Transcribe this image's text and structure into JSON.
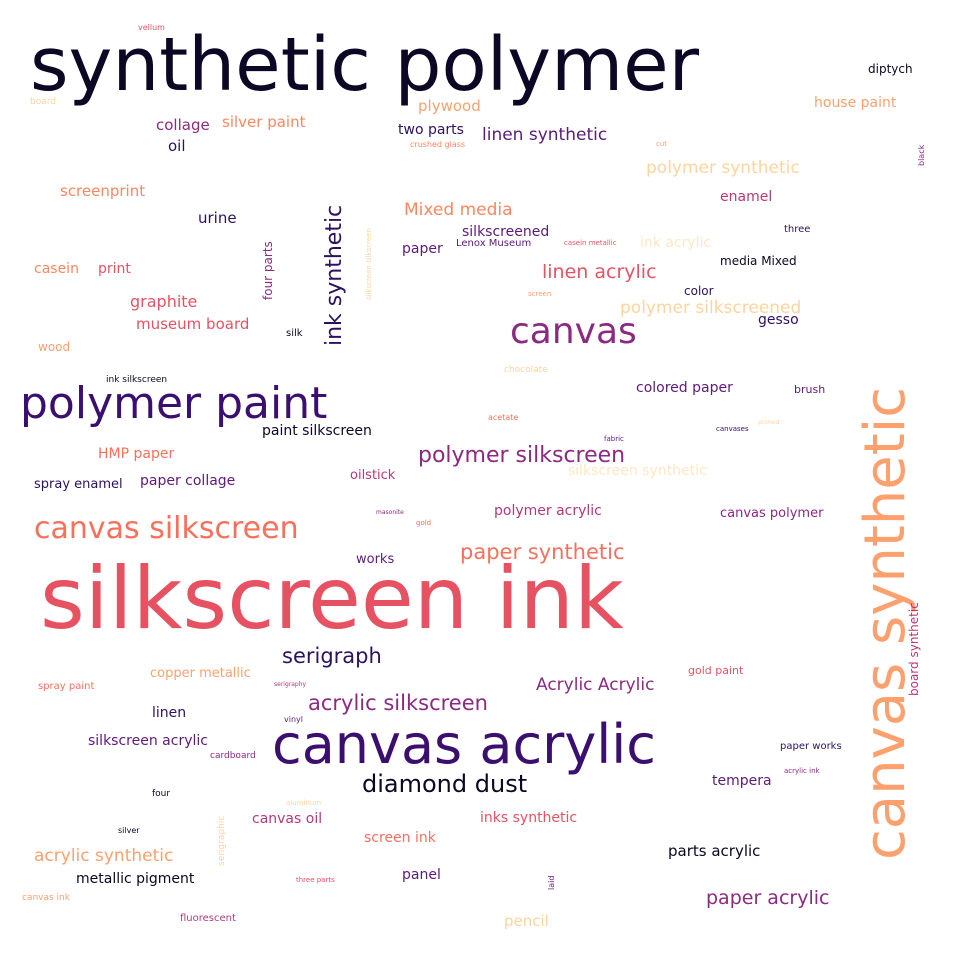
{
  "palette": {
    "near_black": "#0b0724",
    "dark_purple": "#3b0f70",
    "purple": "#5c1a7a",
    "magenta": "#8c2981",
    "rose": "#b73779",
    "coral": "#e75263",
    "orange": "#fb8761",
    "peach": "#fca06e",
    "light_peach": "#fdd49e",
    "cream": "#fce8c4"
  },
  "words": [
    "synthetic polymer",
    "silkscreen ink",
    "canvas synthetic",
    "canvas acrylic",
    "polymer paint",
    "canvas",
    "canvas silkscreen",
    "ink synthetic",
    "diamond dust",
    "polymer silkscreen",
    "paper synthetic",
    "acrylic silkscreen",
    "serigraph",
    "Acrylic Acrylic",
    "paper acrylic",
    "acrylic synthetic",
    "linen acrylic",
    "polymer silkscreened",
    "linen synthetic",
    "polymer synthetic",
    "Mixed media",
    "silkscreened",
    "graphite",
    "museum board",
    "collage",
    "silver paint",
    "oil",
    "screenprint",
    "urine",
    "casein",
    "print",
    "wood",
    "plywood",
    "two parts",
    "house paint",
    "diptych",
    "board",
    "vellum",
    "crushed glass",
    "cut",
    "black",
    "enamel",
    "three",
    "ink acrylic",
    "media Mixed",
    "color",
    "gesso",
    "paper",
    "Lenox Museum",
    "casein metallic",
    "screen",
    "four parts",
    "silkscreen silkscreen",
    "silk",
    "ink silkscreen",
    "chocolate",
    "paint silkscreen",
    "colored paper",
    "brush",
    "acetate",
    "primed",
    "canvases",
    "fabric",
    "HMP paper",
    "spray enamel",
    "paper collage",
    "oilstick",
    "silkscreen synthetic",
    "polymer acrylic",
    "canvas polymer",
    "masonite",
    "gold",
    "works",
    "board synthetic",
    "copper metallic",
    "gold paint",
    "spray paint",
    "serigraphy",
    "linen",
    "vinyl",
    "silkscreen acrylic",
    "cardboard",
    "paper works",
    "acrylic ink",
    "tempera",
    "four",
    "aluminum",
    "silver",
    "serigraphic",
    "canvas oil",
    "inks synthetic",
    "screen ink",
    "parts acrylic",
    "metallic pigment",
    "panel",
    "three parts",
    "laid",
    "canvas ink",
    "pencil",
    "fluorescent"
  ]
}
